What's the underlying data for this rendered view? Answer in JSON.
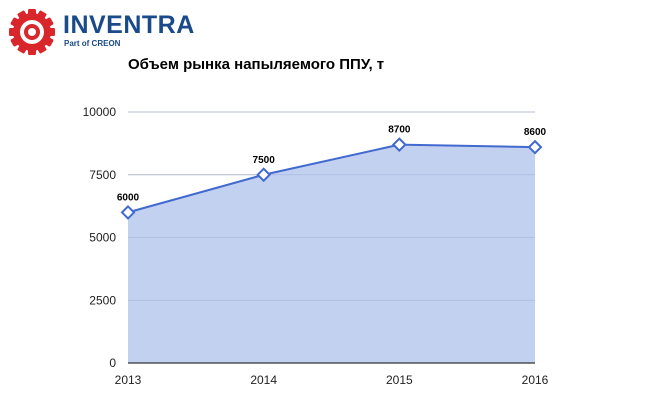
{
  "logo": {
    "name": "INVENTRA",
    "subtitle": "Part of CREON",
    "colors": {
      "primary": "#1a4a8a",
      "accent": "#d9262b"
    }
  },
  "chart_data": {
    "type": "area",
    "title": "Объем рынка напыляемого ППУ, т",
    "xlabel": "",
    "ylabel": "",
    "x": [
      "2013",
      "2014",
      "2015",
      "2016"
    ],
    "series": [
      {
        "values": [
          6000,
          7500,
          8700,
          8600
        ],
        "labels": [
          "6000",
          "7500",
          "8700",
          "8600"
        ]
      }
    ],
    "ylim": [
      0,
      10000
    ],
    "yticks": [
      "0",
      "2500",
      "5000",
      "7500",
      "10000"
    ],
    "ytick_values": [
      0,
      2500,
      5000,
      7500,
      10000
    ],
    "grid": true,
    "legend": "none",
    "colors": {
      "line": "#4169cf",
      "fill": "#c3d1f0",
      "grid": "#cccccc",
      "axis": "#333333"
    }
  }
}
